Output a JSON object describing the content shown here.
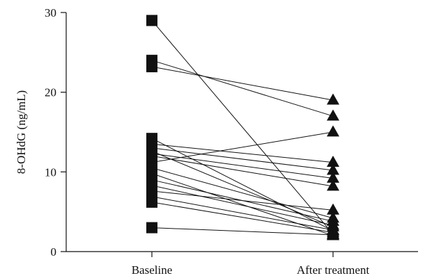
{
  "chart_data": {
    "type": "line",
    "title": "",
    "xlabel": "",
    "ylabel": "8-OHdG (ng/mL)",
    "categories": [
      "Baseline",
      "After treatment"
    ],
    "ylim": [
      0,
      30
    ],
    "yticks": [
      0,
      10,
      20,
      30
    ],
    "grid": false,
    "legend": "none",
    "marker_color": "#111111",
    "line_color": "#111111",
    "markers": {
      "Baseline": "square",
      "After treatment": "triangle"
    },
    "pairs": [
      {
        "baseline": 29.0,
        "after": 2.2
      },
      {
        "baseline": 24.0,
        "after": 17.0
      },
      {
        "baseline": 23.2,
        "after": 19.0
      },
      {
        "baseline": 14.2,
        "after": 2.6
      },
      {
        "baseline": 13.5,
        "after": 11.2
      },
      {
        "baseline": 13.0,
        "after": 10.2
      },
      {
        "baseline": 12.6,
        "after": 3.1
      },
      {
        "baseline": 12.3,
        "after": 9.2
      },
      {
        "baseline": 12.0,
        "after": 8.2
      },
      {
        "baseline": 11.2,
        "after": 15.0
      },
      {
        "baseline": 10.5,
        "after": 4.2
      },
      {
        "baseline": 9.8,
        "after": 2.0
      },
      {
        "baseline": 9.0,
        "after": 3.8
      },
      {
        "baseline": 8.3,
        "after": 3.3
      },
      {
        "baseline": 7.6,
        "after": 5.2
      },
      {
        "baseline": 6.9,
        "after": 2.7
      },
      {
        "baseline": 6.2,
        "after": 2.4
      },
      {
        "baseline": 3.0,
        "after": 2.1
      }
    ]
  }
}
